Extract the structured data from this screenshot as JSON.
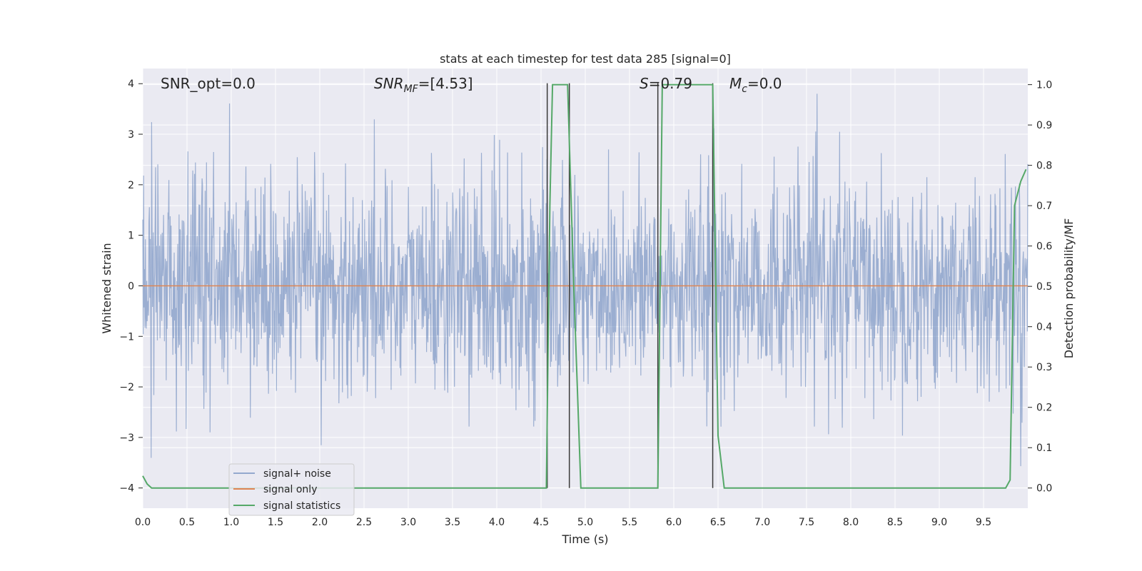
{
  "chart_data": {
    "type": "line",
    "title": "stats at each timestep for test data 285 [signal=0]",
    "xlabel": "Time (s)",
    "ylabel_left": "Whitened strain",
    "ylabel_right": "Detection probability/MF",
    "xlim": [
      0.0,
      10.0
    ],
    "ylim_left": [
      -4.4,
      4.3
    ],
    "ylim_right": [
      -0.05,
      1.04
    ],
    "x_ticks": [
      "0.0",
      "0.5",
      "1.0",
      "1.5",
      "2.0",
      "2.5",
      "3.0",
      "3.5",
      "4.0",
      "4.5",
      "5.0",
      "5.5",
      "6.0",
      "6.5",
      "7.0",
      "7.5",
      "8.0",
      "8.5",
      "9.0",
      "9.5"
    ],
    "y_left_ticks": [
      "4",
      "3",
      "2",
      "1",
      "0",
      "−1",
      "−2",
      "−3",
      "−4"
    ],
    "y_right_ticks": [
      "1.0",
      "0.9",
      "0.8",
      "0.7",
      "0.6",
      "0.5",
      "0.4",
      "0.3",
      "0.2",
      "0.1",
      "0.0"
    ],
    "grid": true,
    "legend_position": "lower-left",
    "colors": {
      "background": "#eaeaf2",
      "grid": "#ffffff",
      "noise": "#4c72b0",
      "signal": "#dd8452",
      "stats": "#55a868",
      "vline": "#3a3a3a"
    },
    "series": [
      {
        "name": "signal+ noise",
        "kind": "whitened-strain-noise",
        "n_samples": 2000,
        "std": 1.0,
        "peak_range": [
          -4.1,
          3.8
        ]
      },
      {
        "name": "signal only",
        "kind": "flat",
        "value": 0.0
      },
      {
        "name": "signal statistics",
        "kind": "probability",
        "x": [
          0.0,
          0.05,
          0.1,
          0.12,
          4.56,
          4.6,
          4.63,
          4.8,
          4.87,
          4.95,
          5.82,
          5.87,
          6.44,
          6.5,
          6.57,
          9.75,
          9.8,
          9.85,
          9.92,
          9.98
        ],
        "y": [
          0.03,
          0.01,
          0.0,
          0.0,
          0.0,
          0.7,
          1.0,
          1.0,
          0.5,
          0.0,
          0.0,
          1.0,
          1.0,
          0.13,
          0.0,
          0.0,
          0.02,
          0.7,
          0.76,
          0.79
        ]
      }
    ],
    "vertical_lines": [
      4.57,
      4.82,
      5.82,
      6.44
    ],
    "annotations": [
      {
        "text": "SNR_opt=0.0",
        "x": 0.2
      },
      {
        "base": "SNR",
        "sub": "MF",
        "suffix": "=[4.53]",
        "x": 2.6
      },
      {
        "base": "S",
        "suffix": "=0.79",
        "x": 5.6
      },
      {
        "base": "M",
        "sub": "c",
        "suffix": "=0.0",
        "x": 6.6
      }
    ]
  }
}
